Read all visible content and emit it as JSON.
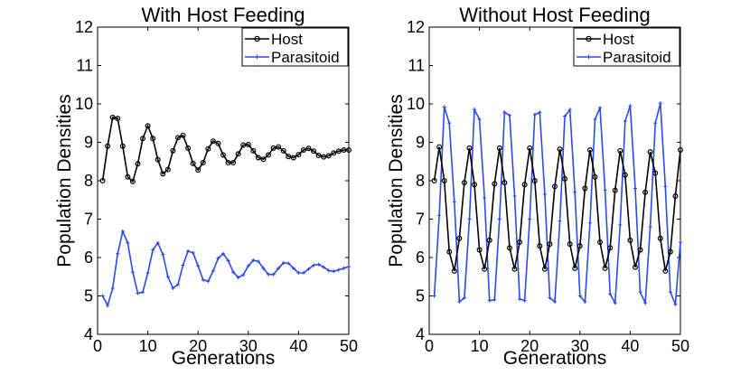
{
  "chart_data": [
    {
      "type": "line",
      "title": "With Host Feeding",
      "xlabel": "Generations",
      "ylabel": "Population Densities",
      "xlim": [
        0,
        50
      ],
      "ylim": [
        4,
        12
      ],
      "xticks": [
        0,
        10,
        20,
        30,
        40,
        50
      ],
      "yticks": [
        4,
        5,
        6,
        7,
        8,
        9,
        10,
        11,
        12
      ],
      "legend_position": "top-right",
      "grid": false,
      "x": [
        1,
        2,
        3,
        4,
        5,
        6,
        7,
        8,
        9,
        10,
        11,
        12,
        13,
        14,
        15,
        16,
        17,
        18,
        19,
        20,
        21,
        22,
        23,
        24,
        25,
        26,
        27,
        28,
        29,
        30,
        31,
        32,
        33,
        34,
        35,
        36,
        37,
        38,
        39,
        40,
        41,
        42,
        43,
        44,
        45,
        46,
        47,
        48,
        49,
        50
      ],
      "series": [
        {
          "name": "Host",
          "color": "#000000",
          "marker": "circle",
          "values": [
            8.0,
            8.9,
            9.65,
            9.62,
            8.9,
            8.1,
            7.98,
            8.44,
            9.1,
            9.43,
            9.1,
            8.55,
            8.18,
            8.29,
            8.78,
            9.12,
            9.18,
            8.85,
            8.45,
            8.28,
            8.47,
            8.83,
            9.03,
            8.97,
            8.67,
            8.47,
            8.47,
            8.7,
            8.93,
            8.94,
            8.78,
            8.6,
            8.56,
            8.67,
            8.85,
            8.88,
            8.78,
            8.63,
            8.6,
            8.68,
            8.8,
            8.84,
            8.77,
            8.66,
            8.62,
            8.65,
            8.72,
            8.77,
            8.8,
            8.8
          ]
        },
        {
          "name": "Parasitoid",
          "color": "#2b4be8",
          "marker": "plus",
          "values": [
            5.0,
            4.75,
            5.2,
            6.1,
            6.68,
            6.38,
            5.62,
            5.07,
            5.1,
            5.6,
            6.2,
            6.38,
            6.08,
            5.5,
            5.2,
            5.3,
            5.8,
            6.17,
            6.12,
            5.78,
            5.42,
            5.38,
            5.65,
            5.98,
            6.1,
            5.92,
            5.62,
            5.48,
            5.55,
            5.78,
            5.93,
            5.9,
            5.72,
            5.56,
            5.56,
            5.72,
            5.86,
            5.85,
            5.72,
            5.6,
            5.6,
            5.7,
            5.8,
            5.82,
            5.75,
            5.66,
            5.64,
            5.68,
            5.72,
            5.76
          ]
        }
      ]
    },
    {
      "type": "line",
      "title": "Without Host Feeding",
      "xlabel": "Generations",
      "ylabel": "Population Densities",
      "xlim": [
        0,
        50
      ],
      "ylim": [
        4,
        12
      ],
      "xticks": [
        0,
        10,
        20,
        30,
        40,
        50
      ],
      "yticks": [
        4,
        5,
        6,
        7,
        8,
        9,
        10,
        11,
        12
      ],
      "legend_position": "top-right",
      "grid": false,
      "x": [
        1,
        2,
        3,
        4,
        5,
        6,
        7,
        8,
        9,
        10,
        11,
        12,
        13,
        14,
        15,
        16,
        17,
        18,
        19,
        20,
        21,
        22,
        23,
        24,
        25,
        26,
        27,
        28,
        29,
        30,
        31,
        32,
        33,
        34,
        35,
        36,
        37,
        38,
        39,
        40,
        41,
        42,
        43,
        44,
        45,
        46,
        47,
        48,
        49,
        50
      ],
      "series": [
        {
          "name": "Host",
          "color": "#000000",
          "marker": "circle",
          "values": [
            8.0,
            8.88,
            8.0,
            6.15,
            5.65,
            6.5,
            7.95,
            8.85,
            7.9,
            6.2,
            5.7,
            6.45,
            7.92,
            8.85,
            7.95,
            6.25,
            5.7,
            6.4,
            7.9,
            8.85,
            8.0,
            6.3,
            5.7,
            6.35,
            7.85,
            8.82,
            8.05,
            6.35,
            5.72,
            6.3,
            7.8,
            8.8,
            8.1,
            6.4,
            5.72,
            6.25,
            7.75,
            8.78,
            8.15,
            6.45,
            5.75,
            6.2,
            7.7,
            8.75,
            8.2,
            6.5,
            5.65,
            6.15,
            7.6,
            8.8
          ]
        },
        {
          "name": "Parasitoid",
          "color": "#2b4be8",
          "marker": "plus",
          "values": [
            5.0,
            7.1,
            9.92,
            9.5,
            7.45,
            4.85,
            4.95,
            7.0,
            9.85,
            9.6,
            7.55,
            4.88,
            4.9,
            7.0,
            9.78,
            9.7,
            7.6,
            4.92,
            4.88,
            7.0,
            9.72,
            9.78,
            7.65,
            4.95,
            4.85,
            6.95,
            9.68,
            9.85,
            7.7,
            5.0,
            4.85,
            6.9,
            9.6,
            9.9,
            7.75,
            5.05,
            4.82,
            6.85,
            9.55,
            9.95,
            7.8,
            5.1,
            4.82,
            6.8,
            9.5,
            10.02,
            7.85,
            5.1,
            4.78,
            6.4
          ]
        }
      ]
    }
  ]
}
